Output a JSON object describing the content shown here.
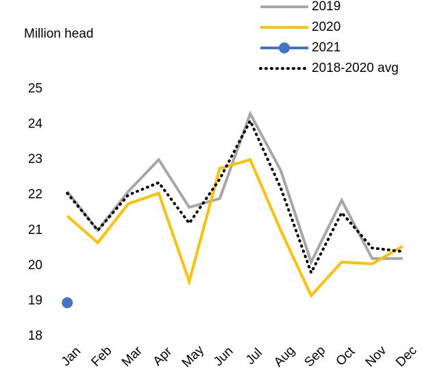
{
  "chart_data": {
    "type": "line",
    "y_label": "Million head",
    "categories": [
      "Jan",
      "Feb",
      "Mar",
      "Apr",
      "May",
      "Jun",
      "Jul",
      "Aug",
      "Sep",
      "Oct",
      "Nov",
      "Dec"
    ],
    "series": [
      {
        "name": "2019",
        "color": "#a6a6a6",
        "style": "solid",
        "values": [
          22.1,
          21.0,
          22.1,
          23.0,
          21.65,
          21.9,
          24.3,
          22.7,
          20.1,
          21.85,
          20.2,
          20.2
        ]
      },
      {
        "name": "2020",
        "color": "#ffc000",
        "style": "solid",
        "values": [
          21.4,
          20.65,
          21.75,
          22.05,
          19.55,
          22.75,
          23.0,
          21.0,
          19.15,
          20.1,
          20.05,
          20.55
        ]
      },
      {
        "name": "2021",
        "color": "#4472c4",
        "style": "marker",
        "values": [
          18.95,
          null,
          null,
          null,
          null,
          null,
          null,
          null,
          null,
          null,
          null,
          null
        ]
      },
      {
        "name": "2018-2020 avg",
        "color": "#000000",
        "style": "dotted",
        "values": [
          22.05,
          21.0,
          22.0,
          22.35,
          21.2,
          22.45,
          24.1,
          22.2,
          19.8,
          21.5,
          20.5,
          20.4
        ]
      }
    ],
    "ylim": [
      18,
      25
    ],
    "yticks": [
      18,
      19,
      20,
      21,
      22,
      23,
      24,
      25
    ],
    "grid": false
  }
}
